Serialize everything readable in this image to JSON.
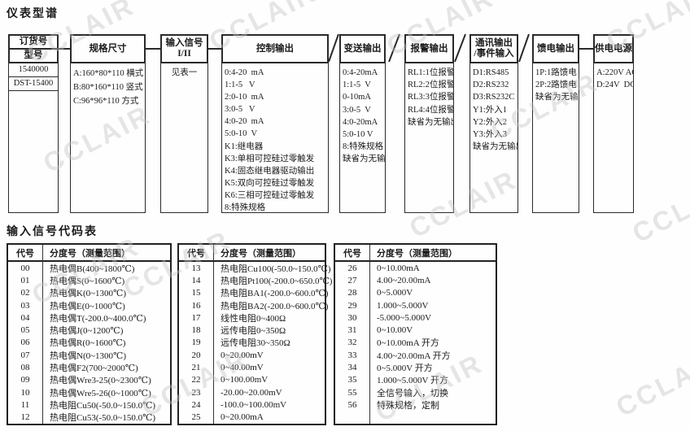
{
  "page": {
    "title1": "仪表型谱",
    "title2": "输入信号代码表",
    "watermark": "CCLAIR"
  },
  "spectrum": {
    "columns": [
      {
        "id": "order",
        "header_lines": [
          "订货号",
          "型号"
        ],
        "items": [
          "1540000",
          "DST-15400"
        ]
      },
      {
        "id": "size",
        "header_lines": [
          "规格尺寸"
        ],
        "items": [
          "A:160*80*110 横式",
          "B:80*160*110 竖式",
          "C:96*96*110 方式"
        ]
      },
      {
        "id": "input",
        "header_lines": [
          "输入信号",
          "I/II"
        ],
        "items": [
          "见表一"
        ]
      },
      {
        "id": "control",
        "header_lines": [
          "控制输出"
        ],
        "items": [
          "0:4-20  mA",
          "1:1-5   V",
          "2:0-10  mA",
          "3:0-5   V",
          "4:0-20  mA",
          "5:0-10  V",
          "K1:继电器",
          "K3:单相可控硅过零触发",
          "K4:固态继电器驱动输出",
          "K5:双向可控硅过零触发",
          "K6:三相可控硅过零触发",
          "8:特殊规格"
        ]
      },
      {
        "id": "transmit",
        "header_lines": [
          "变送输出"
        ],
        "items": [
          "0:4-20mA",
          "1:1-5  V",
          "0-10mA",
          "3:0-5  V",
          "4:0-20mA",
          "5:0-10 V",
          "8:特殊规格",
          "缺省为无输出"
        ]
      },
      {
        "id": "alarm",
        "header_lines": [
          "报警输出"
        ],
        "items": [
          "RL1:1位报警",
          "RL2:2位报警",
          "RL3:3位报警",
          "RL4:4位报警",
          "缺省为无输出"
        ]
      },
      {
        "id": "comm",
        "header_lines": [
          "通讯输出",
          "/事件输入"
        ],
        "items": [
          "D1:RS485",
          "D2:RS232",
          "D3:RS232C",
          "Y1:外入1",
          "Y2:外入2",
          "Y3:外入3",
          "缺省为无输出"
        ]
      },
      {
        "id": "feed",
        "header_lines": [
          "馈电输出"
        ],
        "items": [
          "1P:1路馈电",
          "2P:2路馈电",
          "缺省为无输出"
        ]
      },
      {
        "id": "power",
        "header_lines": [
          "供电电源"
        ],
        "items": [
          "A:220V AC",
          "D:24V  DC"
        ]
      }
    ]
  },
  "code_table": {
    "col_headers": [
      "代号",
      "分度号（测量范围）"
    ],
    "groups": [
      {
        "rows": [
          [
            "00",
            "热电偶B(400~1800℃)"
          ],
          [
            "01",
            "热电偶S(0~1600℃)"
          ],
          [
            "02",
            "热电偶K(0~1300℃)"
          ],
          [
            "03",
            "热电偶E(0~1000℃)"
          ],
          [
            "04",
            "热电偶T(-200.0~400.0℃)"
          ],
          [
            "05",
            "热电偶J(0~1200℃)"
          ],
          [
            "06",
            "热电偶R(0~1600℃)"
          ],
          [
            "07",
            "热电偶N(0~1300℃)"
          ],
          [
            "08",
            "热电偶F2(700~2000℃)"
          ],
          [
            "09",
            "热电偶Wre3-25(0~2300℃)"
          ],
          [
            "10",
            "热电偶Wre5-26(0~1000℃)"
          ],
          [
            "11",
            "热电阻Cu50(-50.0~150.0℃)"
          ],
          [
            "12",
            "热电阻Cu53(-50.0~150.0℃)"
          ]
        ]
      },
      {
        "rows": [
          [
            "13",
            "热电阻Cu100(-50.0~150.0℃)"
          ],
          [
            "14",
            "热电阻Pt100(-200.0~650.0℃)"
          ],
          [
            "15",
            "热电阻BA1(-200.0~600.0℃)"
          ],
          [
            "16",
            "热电阻BA2(-200.0~600.0℃)"
          ],
          [
            "17",
            "线性电阻0~400Ω"
          ],
          [
            "18",
            "远传电阻0~350Ω"
          ],
          [
            "19",
            "远传电阻30~350Ω"
          ],
          [
            "20",
            "0~20.00mV"
          ],
          [
            "21",
            "0~40.00mV"
          ],
          [
            "22",
            "0~100.00mV"
          ],
          [
            "23",
            "-20.00~20.00mV"
          ],
          [
            "24",
            "-100.0~100.00mV"
          ],
          [
            "25",
            "0~20.00mA"
          ]
        ]
      },
      {
        "rows": [
          [
            "26",
            "0~10.00mA"
          ],
          [
            "27",
            "4.00~20.00mA"
          ],
          [
            "28",
            "0~5.000V"
          ],
          [
            "29",
            "1.000~5.000V"
          ],
          [
            "30",
            "-5.000~5.000V"
          ],
          [
            "31",
            "0~10.00V"
          ],
          [
            "32",
            "0~10.00mA 开方"
          ],
          [
            "33",
            "4.00~20.00mA 开方"
          ],
          [
            "34",
            "0~5.000V 开方"
          ],
          [
            "35",
            "1.000~5.000V 开方"
          ],
          [
            "55",
            "全信号输入，切换"
          ],
          [
            "56",
            "特殊规格，定制"
          ],
          [
            "",
            ""
          ]
        ]
      }
    ]
  }
}
